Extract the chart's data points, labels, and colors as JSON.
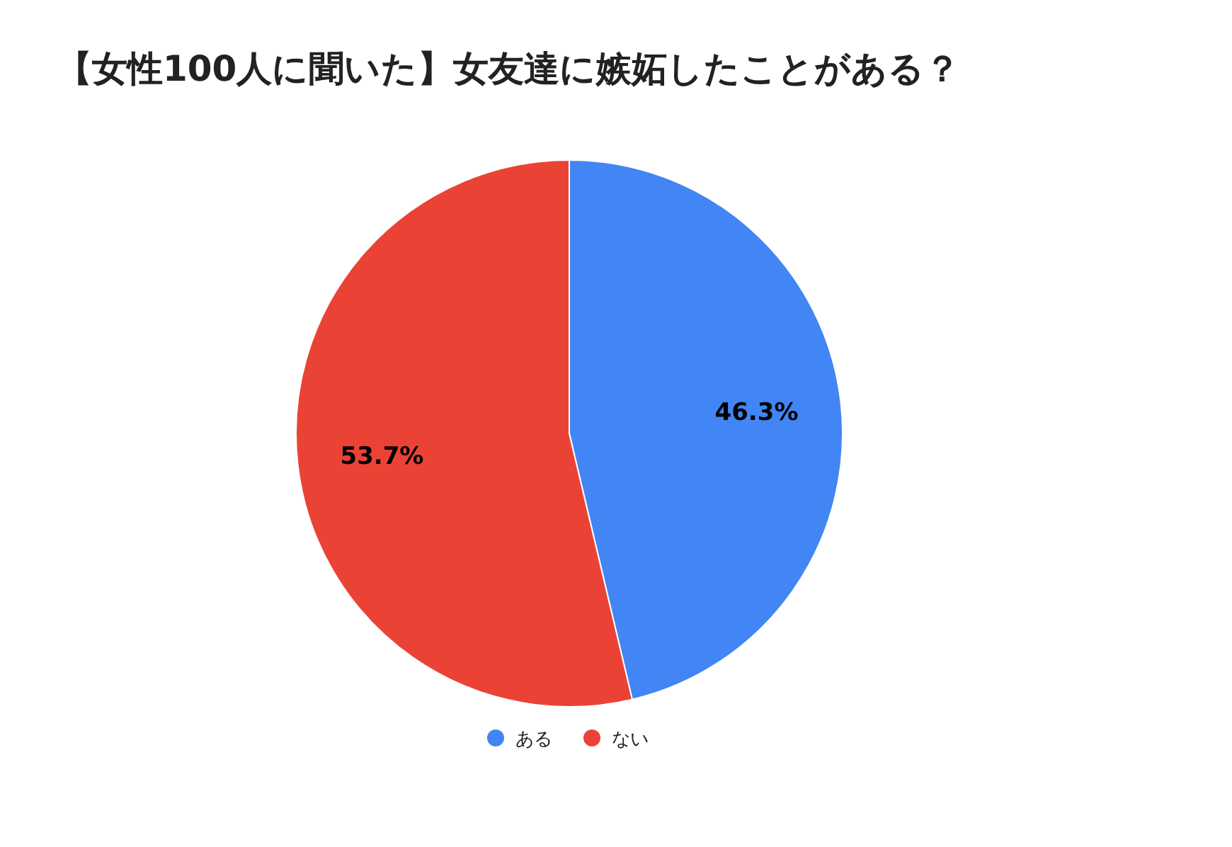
{
  "chart_data": {
    "type": "pie",
    "title": "【女性100人に聞いた】女友達に嫉妬したことがある？",
    "categories": [
      "ある",
      "ない"
    ],
    "values": [
      46.3,
      53.7
    ],
    "colors": [
      "#4285f4",
      "#ea4335"
    ],
    "value_labels": [
      "46.3%",
      "53.7%"
    ],
    "legend": "bottom"
  }
}
